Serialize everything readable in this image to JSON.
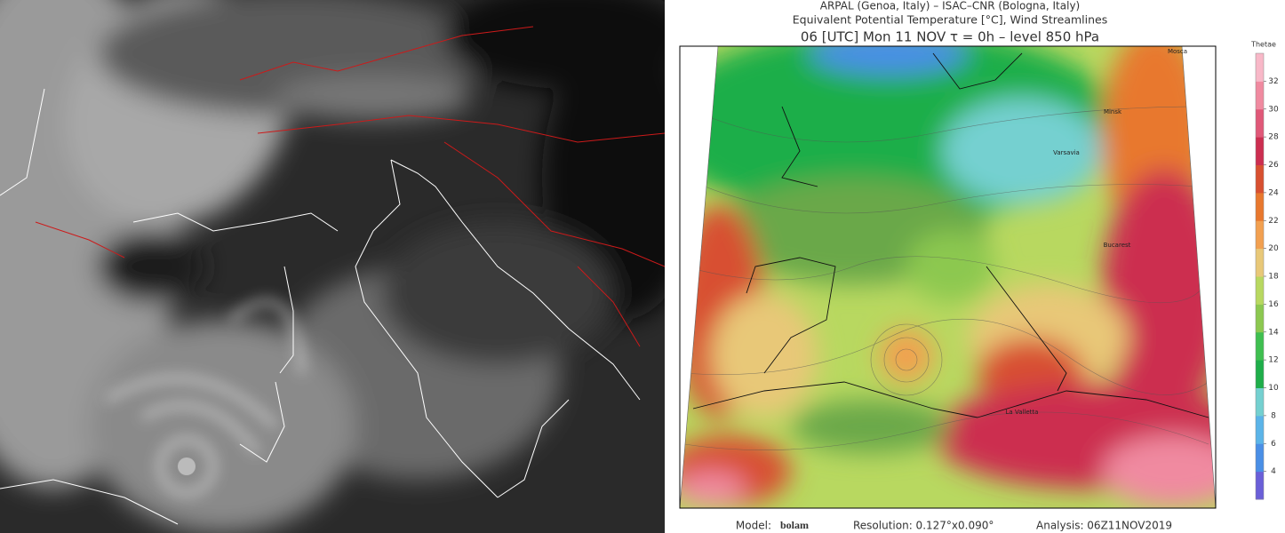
{
  "header": {
    "line1": "ARPAL (Genoa, Italy)  –  ISAC–CNR (Bologna, Italy)",
    "line2": "Equivalent Potential Temperature [°C], Wind Streamlines",
    "line3": "06 [UTC] Mon 11 NOV   τ = 0h   –   level 850 hPa"
  },
  "colorbar": {
    "title": "Thetae",
    "range": [
      2,
      34
    ],
    "ticks": [
      4,
      6,
      8,
      10,
      12,
      14,
      16,
      18,
      20,
      22,
      24,
      26,
      28,
      30,
      32
    ],
    "colors": [
      "#6a5fd8",
      "#4a8fe6",
      "#5bb4e8",
      "#74d0d0",
      "#1fae4a",
      "#3fbf50",
      "#8cc850",
      "#b8d860",
      "#e8c878",
      "#f2a050",
      "#e8782e",
      "#d85030",
      "#cc2e50",
      "#e05878",
      "#f08aa0",
      "#f8b8c8"
    ]
  },
  "map": {
    "labels": [
      "Mosca",
      "Minsk",
      "Varsavia",
      "Bucarest",
      "La Valletta"
    ]
  },
  "footer": {
    "model_label": "Model:",
    "model": "bolam",
    "resolution": "Resolution: 0.127°x0.090°",
    "analysis": "Analysis: 06Z11NOV2019"
  }
}
